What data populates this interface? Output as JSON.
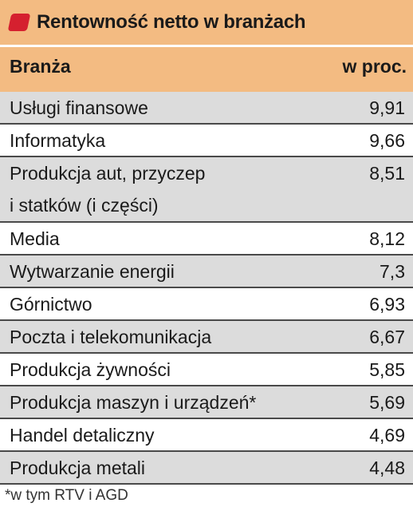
{
  "title": "Rentowność netto w branżach",
  "colors": {
    "header_bg": "#f3bb82",
    "marker": "#d5202f",
    "row_shaded": "#dcdcdc",
    "row_white": "#ffffff"
  },
  "header": {
    "sector": "Branża",
    "unit": "w proc."
  },
  "chart_data": {
    "type": "table",
    "title": "Rentowność netto w branżach",
    "columns": [
      "Branża",
      "w proc."
    ],
    "rows": [
      {
        "label": "Usługi finansowe",
        "value": "9,91"
      },
      {
        "label": "Informatyka",
        "value": "9,66"
      },
      {
        "label": "Produkcja aut, przyczep i statków (i części)",
        "label_lines": [
          "Produkcja aut, przyczep",
          "i statków (i części)"
        ],
        "value": "8,51"
      },
      {
        "label": "Media",
        "value": "8,12"
      },
      {
        "label": "Wytwarzanie energii",
        "value": "7,3"
      },
      {
        "label": "Górnictwo",
        "value": "6,93"
      },
      {
        "label": "Poczta i telekomunikacja",
        "value": "6,67"
      },
      {
        "label": "Produkcja żywności",
        "value": "5,85"
      },
      {
        "label": "Produkcja maszyn i urządzeń*",
        "value": "5,69"
      },
      {
        "label": "Handel detaliczny",
        "value": "4,69"
      },
      {
        "label": "Produkcja metali",
        "value": "4,48"
      }
    ]
  },
  "footnote": "*w tym RTV i AGD"
}
